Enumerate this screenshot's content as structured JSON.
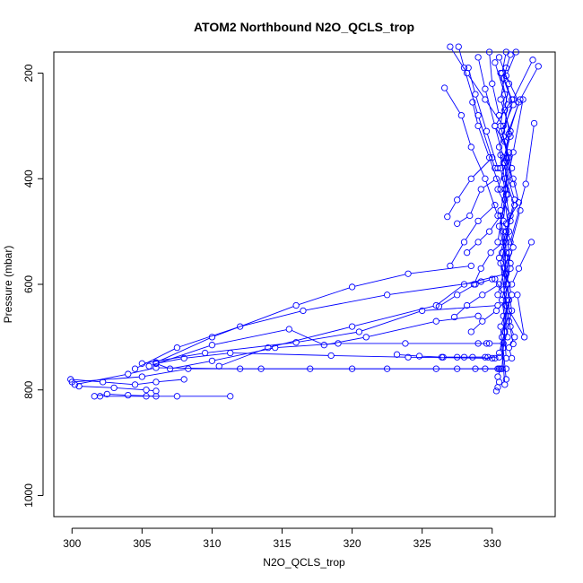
{
  "chart_data": {
    "type": "line",
    "title": "ATOM2 Northbound N2O_QCLS_trop",
    "xlabel": "N2O_QCLS_trop",
    "ylabel": "Pressure (mbar)",
    "xlim": [
      298.7,
      334.5
    ],
    "ylim": [
      1040,
      160
    ],
    "y_reversed": true,
    "grid": false,
    "legend": "none",
    "x_ticks": [
      300,
      305,
      310,
      315,
      320,
      325,
      330
    ],
    "x_tick_labels": [
      "300",
      "305",
      "310",
      "315",
      "320",
      "325",
      "330"
    ],
    "y_ticks": [
      200,
      400,
      600,
      800,
      1000
    ],
    "y_tick_labels": [
      "200",
      "400",
      "600",
      "800",
      "1000"
    ],
    "marker": "open-circle",
    "color": "#0000ff",
    "series": [
      {
        "x": [
          311.3,
          307.5,
          305.3,
          302.0
        ],
        "y": [
          812,
          812,
          812,
          812
        ]
      },
      {
        "x": [
          306.0,
          304.0,
          302.5,
          301.6
        ],
        "y": [
          812,
          810,
          808,
          812
        ]
      },
      {
        "x": [
          299.9,
          302.2,
          304.5,
          306.0,
          308.0
        ],
        "y": [
          780,
          785,
          790,
          785,
          780
        ]
      },
      {
        "x": [
          300.5,
          303.0,
          305.3,
          306.0
        ],
        "y": [
          793,
          796,
          800,
          802
        ]
      },
      {
        "x": [
          330.0,
          324.0,
          318.5,
          311.3,
          308.0,
          306.0
        ],
        "y": [
          740,
          738,
          735,
          730,
          740,
          750
        ]
      },
      {
        "x": [
          330.5,
          326.0,
          320.0,
          312.0,
          306.0,
          304.0,
          300.2
        ],
        "y": [
          760,
          760,
          760,
          760,
          758,
          770,
          790
        ]
      },
      {
        "x": [
          331.0,
          327.5,
          322.5,
          317.0,
          313.5,
          308.3,
          305.0,
          300.0
        ],
        "y": [
          760,
          760,
          760,
          760,
          760,
          760,
          775,
          785
        ]
      },
      {
        "x": [
          329.6,
          323.8,
          319.0,
          314.5,
          310.0,
          307.0,
          306.0
        ],
        "y": [
          712,
          712,
          712,
          720,
          745,
          760,
          750
        ]
      },
      {
        "x": [
          329.0,
          326.0,
          321.0,
          318.0,
          315.5,
          310.0,
          305.5
        ],
        "y": [
          660,
          670,
          700,
          715,
          685,
          715,
          755
        ]
      },
      {
        "x": [
          330.4,
          325.0,
          320.5,
          316.0,
          309.5,
          305.0
        ],
        "y": [
          640,
          650,
          690,
          710,
          730,
          750
        ]
      },
      {
        "x": [
          329.2,
          322.5,
          316.5,
          312.0,
          307.5,
          304.5
        ],
        "y": [
          595,
          620,
          650,
          680,
          720,
          760
        ]
      },
      {
        "x": [
          328.5,
          324.0,
          320.0,
          316.0,
          310.0,
          306.0
        ],
        "y": [
          565,
          580,
          605,
          640,
          700,
          748
        ]
      },
      {
        "x": [
          331.0,
          328.0,
          326.0,
          320.0,
          314.0,
          310.5
        ],
        "y": [
          580,
          600,
          640,
          680,
          720,
          755
        ]
      },
      {
        "x": [
          331.0,
          330.7,
          331.4,
          330.2,
          331.2,
          330.9,
          331.6,
          331.0,
          330.5,
          331.1,
          331.4,
          330.8
        ],
        "y": [
          160,
          200,
          250,
          300,
          350,
          400,
          450,
          500,
          550,
          600,
          650,
          720
        ]
      },
      {
        "x": [
          330.5,
          331.2,
          330.9,
          331.3,
          330.6,
          331.0,
          330.8,
          331.5,
          330.9,
          331.2,
          330.7,
          331.0
        ],
        "y": [
          170,
          220,
          270,
          320,
          380,
          430,
          480,
          530,
          580,
          630,
          700,
          780
        ]
      },
      {
        "x": [
          331.3,
          330.8,
          331.5,
          330.7,
          331.1,
          330.4,
          331.3,
          331.0,
          330.9,
          331.4,
          330.6,
          330.9
        ],
        "y": [
          165,
          210,
          260,
          310,
          360,
          420,
          470,
          520,
          570,
          620,
          680,
          790
        ]
      },
      {
        "x": [
          331.7,
          331.0,
          331.9,
          331.2,
          330.8,
          331.6,
          331.0,
          331.3,
          330.7,
          331.1
        ],
        "y": [
          160,
          205,
          255,
          315,
          370,
          440,
          500,
          560,
          630,
          700
        ]
      },
      {
        "x": [
          330.2,
          330.9,
          330.6,
          331.2,
          330.9,
          331.3,
          330.7,
          331.1,
          330.8,
          331.0
        ],
        "y": [
          180,
          240,
          300,
          360,
          420,
          480,
          540,
          600,
          660,
          740
        ]
      },
      {
        "x": [
          331.0,
          330.6,
          331.3,
          330.9,
          331.1,
          330.5,
          331.0,
          330.8,
          331.2
        ],
        "y": [
          190,
          250,
          310,
          370,
          430,
          490,
          550,
          610,
          670
        ]
      },
      {
        "x": [
          330.6,
          331.1,
          330.8,
          331.4,
          330.9,
          331.2,
          330.6,
          331.0,
          330.7
        ],
        "y": [
          200,
          260,
          320,
          380,
          440,
          500,
          560,
          640,
          760
        ]
      },
      {
        "x": [
          333.3,
          332.0,
          330.9,
          331.5
        ],
        "y": [
          187,
          250,
          330,
          410
        ]
      },
      {
        "x": [
          332.9,
          331.5,
          330.5,
          331.0,
          330.4
        ],
        "y": [
          175,
          250,
          340,
          420,
          520
        ]
      },
      {
        "x": [
          333.0,
          332.4,
          331.3
        ],
        "y": [
          295,
          410,
          520
        ]
      },
      {
        "x": [
          332.2,
          331.5,
          330.6,
          331.0
        ],
        "y": [
          250,
          350,
          460,
          580
        ]
      },
      {
        "x": [
          332.0,
          331.2,
          330.4
        ],
        "y": [
          460,
          540,
          620
        ]
      },
      {
        "x": [
          332.8,
          331.9,
          331.4
        ],
        "y": [
          520,
          570,
          600
        ]
      },
      {
        "x": [
          331.8,
          332.3,
          331.0,
          331.5
        ],
        "y": [
          620,
          700,
          640,
          713
        ]
      },
      {
        "x": [
          326.6,
          327.8,
          328.5,
          329.5,
          330.4
        ],
        "y": [
          228,
          280,
          340,
          400,
          470
        ]
      },
      {
        "x": [
          327.6,
          328.0,
          329.0,
          330.2
        ],
        "y": [
          150,
          190,
          280,
          380
        ]
      },
      {
        "x": [
          328.3,
          328.8,
          329.6,
          330.4
        ],
        "y": [
          190,
          240,
          310,
          380
        ]
      },
      {
        "x": [
          329.0,
          329.5,
          330.2,
          330.8
        ],
        "y": [
          170,
          230,
          300,
          360
        ]
      },
      {
        "x": [
          328.6,
          329.0,
          329.8,
          330.6
        ],
        "y": [
          255,
          300,
          360,
          420
        ]
      },
      {
        "x": [
          329.8,
          330.0,
          330.5
        ],
        "y": [
          160,
          220,
          280
        ]
      },
      {
        "x": [
          327.0,
          328.2,
          329.5,
          330.8
        ],
        "y": [
          150,
          200,
          250,
          300
        ]
      },
      {
        "x": [
          326.8,
          327.5,
          328.5,
          330.0
        ],
        "y": [
          472,
          440,
          400,
          360
        ]
      },
      {
        "x": [
          327.0,
          328.0,
          329.0,
          330.2
        ],
        "y": [
          565,
          520,
          480,
          450
        ]
      },
      {
        "x": [
          327.5,
          328.4,
          329.2,
          330.3
        ],
        "y": [
          485,
          470,
          420,
          400
        ]
      },
      {
        "x": [
          328.2,
          329.0,
          329.8,
          330.6
        ],
        "y": [
          540,
          520,
          500,
          470
        ]
      },
      {
        "x": [
          328.7,
          329.2,
          329.9,
          330.8
        ],
        "y": [
          600,
          570,
          540,
          520
        ]
      },
      {
        "x": [
          326.2,
          327.5,
          328.8,
          330.0
        ],
        "y": [
          642,
          620,
          600,
          590
        ]
      },
      {
        "x": [
          327.3,
          328.2,
          329.3,
          330.5
        ],
        "y": [
          662,
          640,
          620,
          600
        ]
      },
      {
        "x": [
          328.5,
          329.3,
          330.3,
          331.0
        ],
        "y": [
          690,
          670,
          650,
          630
        ]
      },
      {
        "x": [
          329.0,
          329.8,
          330.8
        ],
        "y": [
          712,
          712,
          712
        ]
      },
      {
        "x": [
          326.4,
          327.5,
          328.6,
          329.7,
          330.5
        ],
        "y": [
          738,
          738,
          738,
          738,
          738
        ]
      },
      {
        "x": [
          323.2,
          324.8,
          326.5,
          328.0,
          329.5,
          330.2
        ],
        "y": [
          733,
          736,
          738,
          738,
          738,
          740
        ]
      },
      {
        "x": [
          328.8,
          329.5,
          330.4
        ],
        "y": [
          760,
          760,
          760
        ]
      },
      {
        "x": [
          330.6,
          330.4,
          330.5,
          330.4,
          330.3
        ],
        "y": [
          760,
          775,
          785,
          795,
          802
        ]
      },
      {
        "x": [
          330.2,
          330.8,
          331.2,
          330.9,
          330.5
        ],
        "y": [
          590,
          620,
          650,
          690,
          730
        ]
      },
      {
        "x": [
          330.8,
          331.0,
          331.3,
          331.0
        ],
        "y": [
          500,
          540,
          570,
          600
        ]
      },
      {
        "x": [
          331.1,
          331.3,
          331.6,
          331.2,
          331.4
        ],
        "y": [
          660,
          680,
          700,
          720,
          740
        ]
      },
      {
        "x": [
          330.6,
          331.5,
          331.9,
          331.0
        ],
        "y": [
          355,
          400,
          445,
          485
        ]
      }
    ]
  }
}
